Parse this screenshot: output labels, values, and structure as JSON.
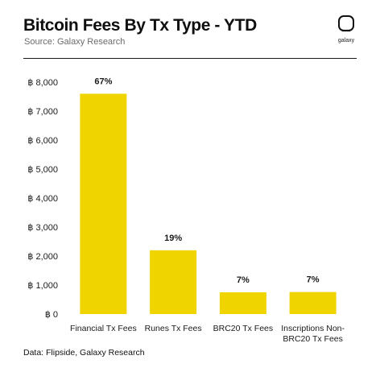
{
  "header": {
    "title": "Bitcoin Fees By Tx Type - YTD",
    "subtitle": "Source: Galaxy Research",
    "logo_text": "galaxy"
  },
  "footer": {
    "note": "Data: Flipside, Galaxy Research"
  },
  "colors": {
    "bar": "#f0d400",
    "axis_text": "#1a1a1a"
  },
  "chart_data": {
    "type": "bar",
    "categories": [
      [
        "Financial Tx Fees"
      ],
      [
        "Runes Tx Fees"
      ],
      [
        "BRC20 Tx Fees"
      ],
      [
        "Inscriptions Non-",
        "BRC20 Tx Fees"
      ]
    ],
    "values": [
      7600,
      2200,
      750,
      760
    ],
    "data_labels": [
      "67%",
      "19%",
      "7%",
      "7%"
    ],
    "ylim": [
      0,
      8000
    ],
    "yticks": [
      0,
      1000,
      2000,
      3000,
      4000,
      5000,
      6000,
      7000,
      8000
    ],
    "ytick_labels": [
      "฿ 0",
      "฿ 1,000",
      "฿ 2,000",
      "฿ 3,000",
      "฿ 4,000",
      "฿ 5,000",
      "฿ 6,000",
      "฿ 7,000",
      "฿ 8,000"
    ],
    "grid": false,
    "legend": "none"
  }
}
